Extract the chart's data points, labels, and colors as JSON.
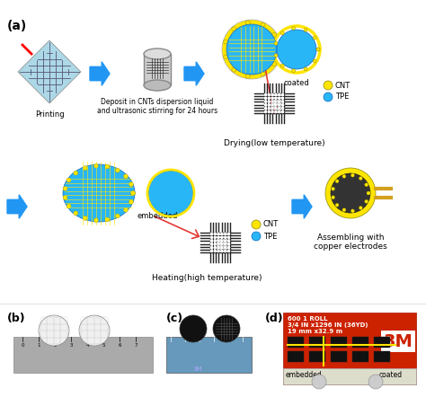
{
  "title_a": "(a)",
  "title_b": "(b)",
  "title_c": "(c)",
  "title_d": "(d)",
  "bg_color": "#ffffff",
  "label_printing": "Printing",
  "label_deposit": "Deposit in CNTs dispersion liquid\nand ultrasonic stirring for 24 hours",
  "label_drying": "Drying(low temperature)",
  "label_heating": "Heating(high temperature)",
  "label_assembling": "Assembling with\ncopper electrodes",
  "label_coated": "coated",
  "label_embedded": "embedded",
  "label_cnt": "CNT",
  "label_tpe": "TPE",
  "label_embedded2": "embedded",
  "label_coated2": "coated",
  "label_3m_text": "600 1 ROLL\n3/4 IN x1296 IN (36YD)\n19 mm x32.9 m",
  "arrow_color": "#2196F3",
  "red_color": "#e53935",
  "yellow_color": "#FFE500",
  "tpe_color": "#29B6F6",
  "cnt_color": "#FFE500",
  "grid_color": "#444444",
  "figsize": [
    4.74,
    4.42
  ],
  "dpi": 100
}
